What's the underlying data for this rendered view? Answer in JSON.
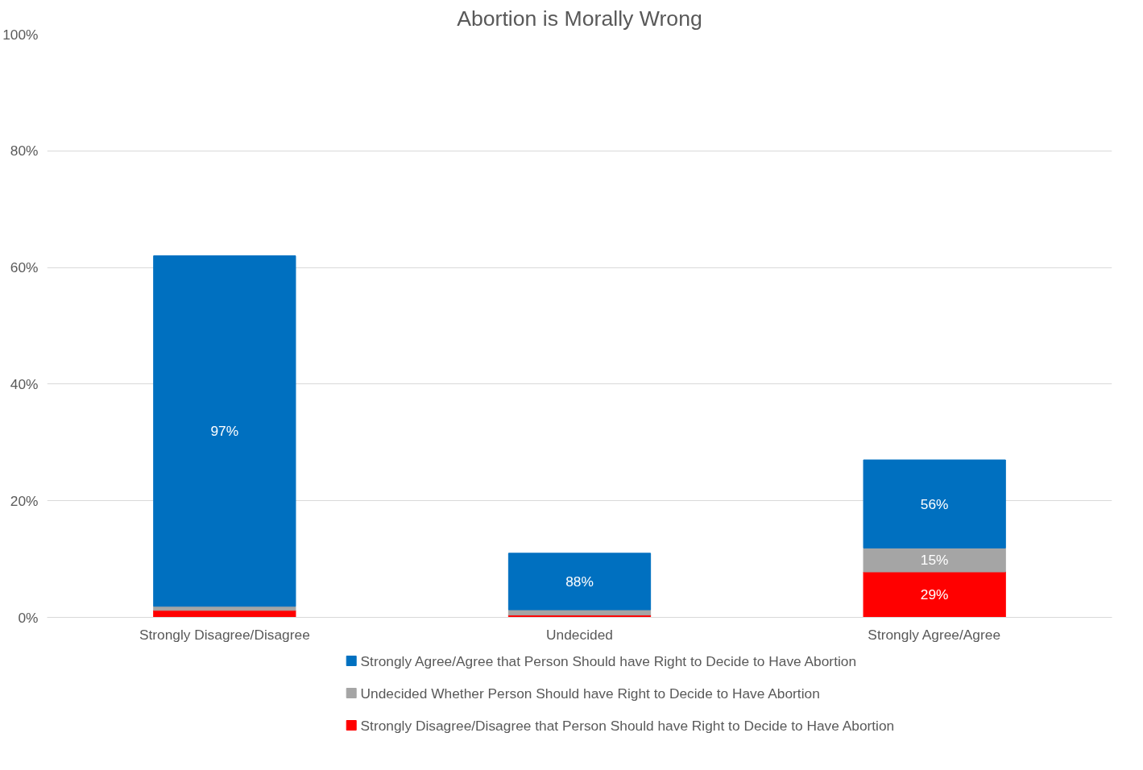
{
  "chart_data": {
    "type": "bar",
    "title": "Abortion is Morally Wrong",
    "stacked": true,
    "categories": [
      "Strongly Disagree/Disagree",
      "Undecided",
      "Strongly Agree/Agree"
    ],
    "series": [
      {
        "name": "Strongly Disagree/Disagree that Person Should have Right to Decide to Have Abortion",
        "color": "#ff0000",
        "values": [
          1.2,
          0.4,
          7.8
        ]
      },
      {
        "name": "Undecided Whether Person Should have Right to Decide to Have Abortion",
        "color": "#a5a5a5",
        "values": [
          0.7,
          0.9,
          4.1
        ]
      },
      {
        "name": "Strongly Agree/Agree that Person Should have Right to Decide to Have Abortion",
        "color": "#0070c0",
        "values": [
          60.1,
          9.7,
          15.1
        ]
      }
    ],
    "annotations": [
      "97%",
      "88%",
      "56%",
      "15%",
      "29%"
    ],
    "ylim": [
      0,
      100
    ],
    "yticks": [
      {
        "value": 0,
        "label": "0%"
      },
      {
        "value": 20,
        "label": "20%"
      },
      {
        "value": 40,
        "label": "40%"
      },
      {
        "value": 60,
        "label": "60%"
      },
      {
        "value": 80,
        "label": "80%"
      },
      {
        "value": 100,
        "label": "100%"
      }
    ],
    "grid": "y",
    "legend": "bottom"
  }
}
